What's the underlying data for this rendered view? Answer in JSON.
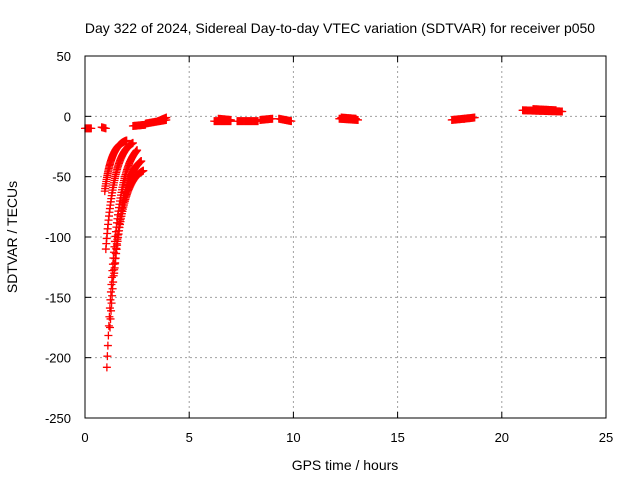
{
  "chart_data": {
    "type": "scatter",
    "title": "Day 322 of 2024, Sidereal Day-to-day VTEC variation (SDTVAR) for receiver p050",
    "xlabel": "GPS time / hours",
    "ylabel": "SDTVAR / TECUs",
    "xlim": [
      0,
      25
    ],
    "ylim": [
      -250,
      50
    ],
    "grid": true,
    "marker": "+",
    "colors": {
      "points": "#ff0000",
      "grid": "#a0a0a0",
      "axes": "#000000"
    },
    "x_ticks": [
      0,
      5,
      10,
      15,
      20,
      25
    ],
    "y_ticks": [
      50,
      0,
      -50,
      -100,
      -150,
      -200,
      -250
    ],
    "x_tick_labels": [
      "0",
      "5",
      "10",
      "15",
      "20",
      "25"
    ],
    "y_tick_labels": [
      "50",
      "0",
      "-50",
      "-100",
      "-150",
      "-200",
      "-250"
    ],
    "flat_segments": [
      {
        "x0": 0.0,
        "x1": 0.3,
        "y0": -10,
        "y1": -10
      },
      {
        "x0": 0.8,
        "x1": 1.0,
        "y0": -9,
        "y1": -10
      },
      {
        "x0": 2.3,
        "x1": 2.9,
        "y0": -8,
        "y1": -7
      },
      {
        "x0": 2.9,
        "x1": 3.9,
        "y0": -6,
        "y1": -3
      },
      {
        "x0": 3.5,
        "x1": 3.9,
        "y0": -4,
        "y1": -1
      },
      {
        "x0": 6.2,
        "x1": 7.0,
        "y0": -4,
        "y1": -4
      },
      {
        "x0": 6.4,
        "x1": 7.0,
        "y0": -2,
        "y1": -3
      },
      {
        "x0": 7.3,
        "x1": 8.3,
        "y0": -4,
        "y1": -4
      },
      {
        "x0": 8.4,
        "x1": 9.0,
        "y0": -3,
        "y1": -2
      },
      {
        "x0": 9.3,
        "x1": 9.9,
        "y0": -2,
        "y1": -4
      },
      {
        "x0": 12.2,
        "x1": 13.1,
        "y0": -2,
        "y1": -3
      },
      {
        "x0": 12.3,
        "x1": 13.0,
        "y0": -1,
        "y1": -2
      },
      {
        "x0": 17.6,
        "x1": 18.2,
        "y0": -3,
        "y1": -2
      },
      {
        "x0": 18.2,
        "x1": 18.7,
        "y0": -2,
        "y1": -1
      },
      {
        "x0": 21.0,
        "x1": 22.9,
        "y0": 5,
        "y1": 4
      },
      {
        "x0": 21.5,
        "x1": 22.6,
        "y0": 6,
        "y1": 5
      }
    ],
    "recovery_curves": [
      {
        "x0": 0.95,
        "x1": 2.0,
        "y0": -62,
        "y1": -20
      },
      {
        "x0": 1.0,
        "x1": 2.3,
        "y0": -110,
        "y1": -22
      },
      {
        "x0": 1.05,
        "x1": 2.5,
        "y0": -208,
        "y1": -28
      },
      {
        "x0": 1.2,
        "x1": 2.7,
        "y0": -175,
        "y1": -37
      },
      {
        "x0": 1.4,
        "x1": 2.8,
        "y0": -130,
        "y1": -45
      }
    ]
  }
}
